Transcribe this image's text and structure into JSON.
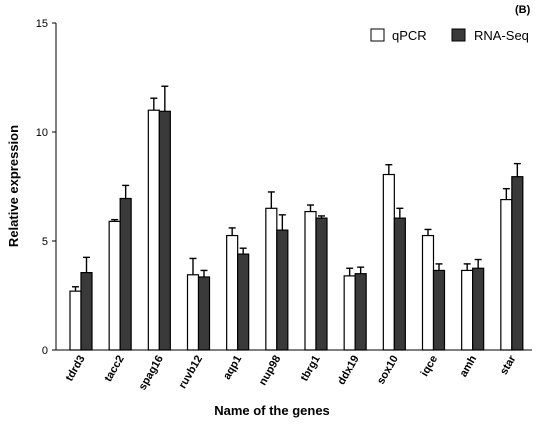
{
  "chart_data": {
    "type": "bar",
    "panel_label": "(B)",
    "xlabel": "Name of the genes",
    "ylabel": "Relative expression",
    "ylim": [
      0,
      15
    ],
    "yticks": [
      0,
      5,
      10,
      15
    ],
    "categories": [
      "tdrd3",
      "tacc2",
      "spag16",
      "ruvb12",
      "aqp1",
      "nup98",
      "tbrg1",
      "ddx19",
      "sox10",
      "iqce",
      "amh",
      "star"
    ],
    "series": [
      {
        "name": "qPCR",
        "color": "#ffffff",
        "values": [
          2.7,
          5.9,
          11.0,
          3.45,
          5.25,
          6.5,
          6.35,
          3.4,
          8.05,
          5.25,
          3.65,
          6.9
        ],
        "errors": [
          0.2,
          0.08,
          0.55,
          0.75,
          0.35,
          0.75,
          0.3,
          0.35,
          0.45,
          0.28,
          0.3,
          0.5
        ]
      },
      {
        "name": "RNA-Seq",
        "color": "#3a3a3a",
        "values": [
          3.55,
          6.95,
          10.95,
          3.35,
          4.4,
          5.5,
          6.05,
          3.5,
          6.05,
          3.65,
          3.75,
          7.95
        ],
        "errors": [
          0.7,
          0.6,
          1.15,
          0.3,
          0.27,
          0.7,
          0.1,
          0.3,
          0.45,
          0.3,
          0.4,
          0.6
        ]
      }
    ],
    "legend_position": "top-right",
    "grid": false
  }
}
